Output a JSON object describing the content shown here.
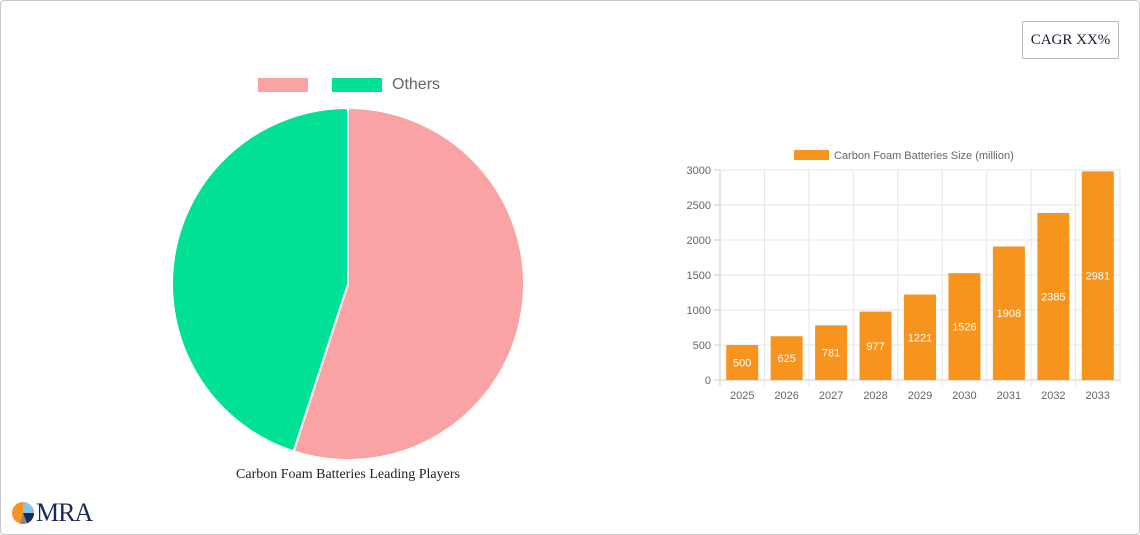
{
  "cagr_badge": {
    "label": "CAGR XX%"
  },
  "pie": {
    "legend": [
      {
        "label": "",
        "color": "#f9a3a4"
      },
      {
        "label": "Others",
        "color": "#00e096"
      }
    ],
    "caption": "Carbon Foam Batteries Leading Players"
  },
  "bar": {
    "legend_label": "Carbon Foam Batteries Size (million)",
    "bar_color": "#f7941d"
  },
  "logo": {
    "text": "MRA"
  },
  "chart_data": [
    {
      "type": "pie",
      "title": "Carbon Foam Batteries Leading Players",
      "labels": [
        "",
        "Others"
      ],
      "values": [
        55,
        45
      ],
      "colors": [
        "#f9a3a4",
        "#00e096"
      ],
      "legend_position": "top"
    },
    {
      "type": "bar",
      "title": "",
      "categories": [
        "2025",
        "2026",
        "2027",
        "2028",
        "2029",
        "2030",
        "2031",
        "2032",
        "2033"
      ],
      "series": [
        {
          "name": "Carbon Foam Batteries Size (million)",
          "values": [
            500,
            625,
            781,
            977,
            1221,
            1526,
            1908,
            2385,
            2981
          ],
          "color": "#f7941d"
        }
      ],
      "xlabel": "",
      "ylabel": "",
      "ylim": [
        0,
        3000
      ],
      "yticks": [
        0,
        500,
        1000,
        1500,
        2000,
        2500,
        3000
      ],
      "grid": true,
      "data_labels": true,
      "legend_position": "top"
    }
  ]
}
